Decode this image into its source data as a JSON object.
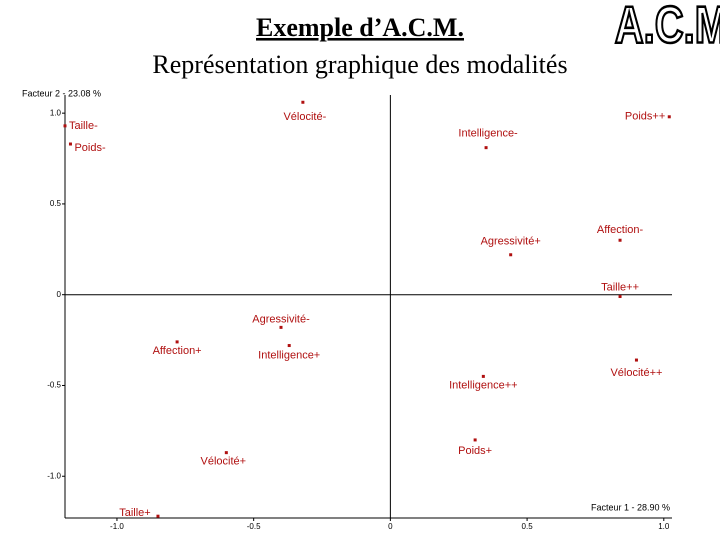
{
  "chart_data": {
    "type": "scatter",
    "title": "Exemple d’A.C.M.",
    "subtitle": "Représentation graphique des modalités",
    "logo": "A.C.M.",
    "ylabel": "Facteur 2 - 23.08 %",
    "xlabel": "Facteur 1 - 28.90 %",
    "color": "#b01010",
    "labels": [
      "Vélocité-",
      "Taille-",
      "Poids++",
      "Intelligence-",
      "Poids-",
      "Affection-",
      "Agressivité+",
      "Taille++",
      "Agressivité-",
      "Affection+",
      "Intelligence+",
      "Vélocité++",
      "Intelligence++",
      "Poids+",
      "Vélocité+",
      "Taille+"
    ],
    "x": [
      -0.32,
      -1.19,
      1.02,
      0.35,
      -1.17,
      0.84,
      0.44,
      0.84,
      -0.4,
      -0.78,
      -0.37,
      0.9,
      0.34,
      0.31,
      -0.6,
      -0.85
    ],
    "y": [
      1.06,
      0.93,
      0.98,
      0.81,
      0.83,
      0.3,
      0.22,
      -0.01,
      -0.18,
      -0.26,
      -0.28,
      -0.36,
      -0.45,
      -0.8,
      -0.87,
      -1.22
    ],
    "xlim": [
      -1.19,
      1.03
    ],
    "ylim": [
      -1.23,
      1.1
    ],
    "xticks": [
      {
        "value": -1,
        "label": "-1.0"
      },
      {
        "value": -0.5,
        "label": "-0.5"
      },
      0,
      0.5,
      {
        "value": 1,
        "label": "1.0"
      }
    ],
    "yticks": [
      {
        "value": 1,
        "label": "1.0"
      },
      0.5,
      0,
      -0.5,
      {
        "value": -1,
        "label": "-1.0"
      }
    ]
  }
}
